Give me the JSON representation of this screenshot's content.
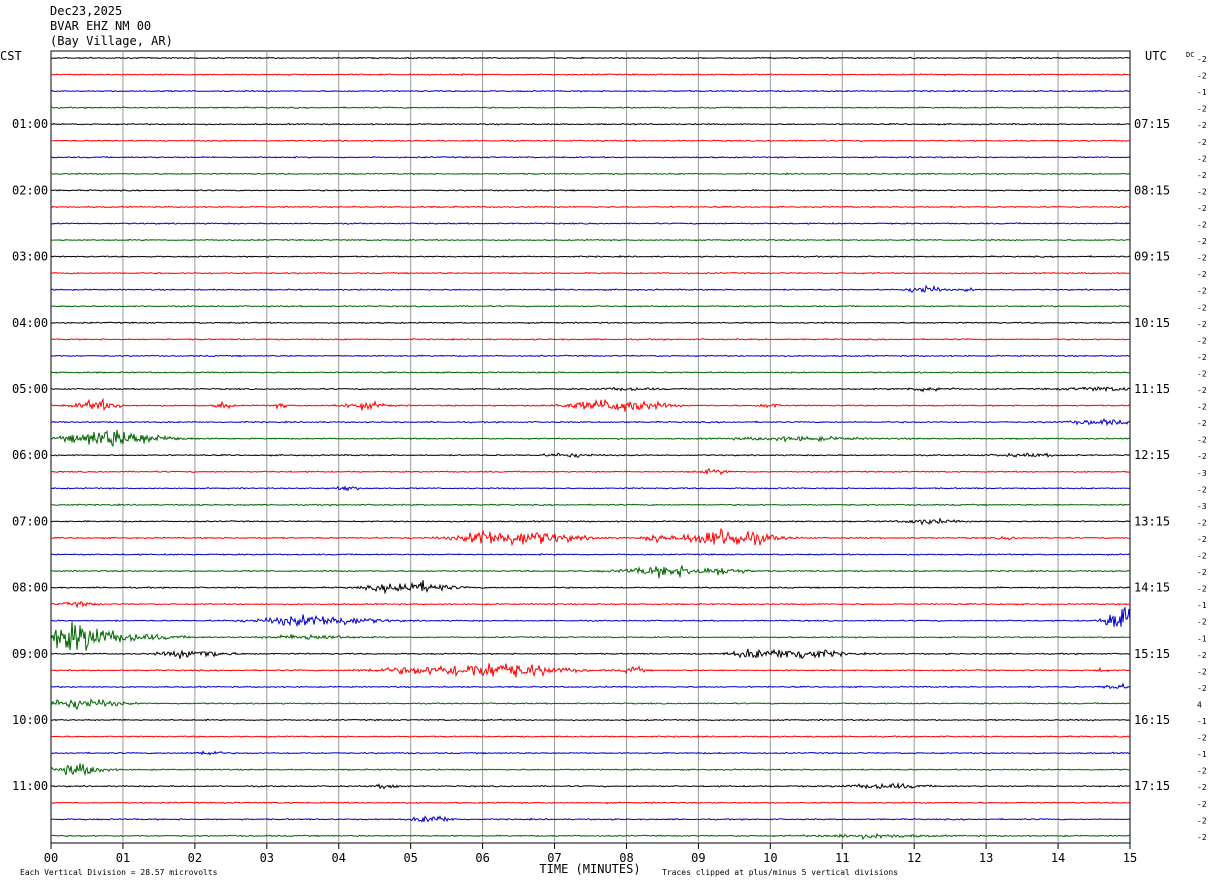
{
  "header": {
    "date": "Dec23,2025",
    "station": "BVAR EHZ NM 00",
    "location": "(Bay Village, AR)"
  },
  "labels": {
    "left_timezone": "CST",
    "right_timezone": "UTC",
    "dc_label": "DC",
    "xlabel": "TIME (MINUTES)",
    "footer_left": "Each Vertical Division =   28.57 microvolts",
    "footer_right": "Traces clipped at plus/minus 5 vertical divisions"
  },
  "chart_data": {
    "type": "line",
    "title": "BVAR EHZ NM 00",
    "xlabel": "TIME (MINUTES)",
    "xlim": [
      0,
      15
    ],
    "x_ticks": [
      "00",
      "01",
      "02",
      "03",
      "04",
      "05",
      "06",
      "07",
      "08",
      "09",
      "10",
      "11",
      "12",
      "13",
      "14",
      "15"
    ],
    "trace_count": 48,
    "trace_colors": [
      "#000000",
      "#ff0000",
      "#0000cc",
      "#006600"
    ],
    "hour_labels_left": [
      "01:00",
      "02:00",
      "03:00",
      "04:00",
      "05:00",
      "06:00",
      "07:00",
      "08:00",
      "09:00",
      "10:00",
      "11:00"
    ],
    "hour_labels_right": [
      "07:15",
      "08:15",
      "09:15",
      "10:15",
      "11:15",
      "12:15",
      "13:15",
      "14:15",
      "15:15",
      "16:15",
      "17:15"
    ],
    "dc_offsets": [
      "-2",
      "-2",
      "-1",
      "-2",
      "-2",
      "-2",
      "-2",
      "-2",
      "-2",
      "-2",
      "-2",
      "-2",
      "-2",
      "-2",
      "-2",
      "-2",
      "-2",
      "-2",
      "-2",
      "-2",
      "-2",
      "-2",
      "-2",
      "-2",
      "-2",
      "-3",
      "-2",
      "-3",
      "-2",
      "-2",
      "-2",
      "-2",
      "-2",
      "-1",
      "-2",
      "-1",
      "-2",
      "-2",
      "-2",
      "4",
      "-1",
      "-2",
      "-1",
      "-2",
      "-2",
      "-2",
      "-2",
      "-2"
    ],
    "events": [
      {
        "trace": 14,
        "center_min": 12.15,
        "width_min": 0.25,
        "amp": 7
      },
      {
        "trace": 14,
        "center_min": 12.75,
        "width_min": 0.1,
        "amp": 2
      },
      {
        "trace": 20,
        "center_min": 12.2,
        "width_min": 0.4,
        "amp": 3
      },
      {
        "trace": 20,
        "center_min": 14.6,
        "width_min": 0.6,
        "amp": 3
      },
      {
        "trace": 20,
        "center_min": 8.0,
        "width_min": 0.5,
        "amp": 2
      },
      {
        "trace": 21,
        "center_min": 0.65,
        "width_min": 0.35,
        "amp": 8
      },
      {
        "trace": 21,
        "center_min": 2.4,
        "width_min": 0.12,
        "amp": 6
      },
      {
        "trace": 21,
        "center_min": 3.2,
        "width_min": 0.15,
        "amp": 3
      },
      {
        "trace": 21,
        "center_min": 4.35,
        "width_min": 0.4,
        "amp": 5
      },
      {
        "trace": 21,
        "center_min": 8.0,
        "width_min": 0.6,
        "amp": 9
      },
      {
        "trace": 21,
        "center_min": 7.5,
        "width_min": 0.6,
        "amp": 4
      },
      {
        "trace": 21,
        "center_min": 10.0,
        "width_min": 0.2,
        "amp": 3
      },
      {
        "trace": 22,
        "center_min": 14.6,
        "width_min": 0.5,
        "amp": 4
      },
      {
        "trace": 23,
        "center_min": 0.75,
        "width_min": 0.6,
        "amp": 14
      },
      {
        "trace": 23,
        "center_min": 1.3,
        "width_min": 0.6,
        "amp": 5
      },
      {
        "trace": 23,
        "center_min": 10.4,
        "width_min": 1.0,
        "amp": 3
      },
      {
        "trace": 24,
        "center_min": 7.2,
        "width_min": 0.4,
        "amp": 3
      },
      {
        "trace": 24,
        "center_min": 13.6,
        "width_min": 0.6,
        "amp": 2
      },
      {
        "trace": 25,
        "center_min": 9.2,
        "width_min": 0.3,
        "amp": 3
      },
      {
        "trace": 26,
        "center_min": 4.1,
        "width_min": 0.2,
        "amp": 4
      },
      {
        "trace": 28,
        "center_min": 12.2,
        "width_min": 0.4,
        "amp": 4
      },
      {
        "trace": 29,
        "center_min": 6.5,
        "width_min": 0.9,
        "amp": 12
      },
      {
        "trace": 29,
        "center_min": 6.0,
        "width_min": 0.2,
        "amp": 7
      },
      {
        "trace": 29,
        "center_min": 8.4,
        "width_min": 0.15,
        "amp": 7
      },
      {
        "trace": 29,
        "center_min": 9.4,
        "width_min": 0.7,
        "amp": 16
      },
      {
        "trace": 29,
        "center_min": 13.3,
        "width_min": 0.15,
        "amp": 3
      },
      {
        "trace": 31,
        "center_min": 8.6,
        "width_min": 0.7,
        "amp": 9
      },
      {
        "trace": 31,
        "center_min": 9.4,
        "width_min": 0.3,
        "amp": 5
      },
      {
        "trace": 32,
        "center_min": 5.0,
        "width_min": 0.6,
        "amp": 10
      },
      {
        "trace": 33,
        "center_min": 0.4,
        "width_min": 0.3,
        "amp": 3
      },
      {
        "trace": 34,
        "center_min": 3.7,
        "width_min": 0.9,
        "amp": 9
      },
      {
        "trace": 34,
        "center_min": 14.9,
        "width_min": 0.25,
        "amp": 28
      },
      {
        "trace": 35,
        "center_min": 0.35,
        "width_min": 0.5,
        "amp": 22
      },
      {
        "trace": 35,
        "center_min": 1.0,
        "width_min": 0.8,
        "amp": 6
      },
      {
        "trace": 35,
        "center_min": 3.6,
        "width_min": 0.6,
        "amp": 4
      },
      {
        "trace": 36,
        "center_min": 2.0,
        "width_min": 0.5,
        "amp": 7
      },
      {
        "trace": 36,
        "center_min": 9.7,
        "width_min": 0.3,
        "amp": 6
      },
      {
        "trace": 36,
        "center_min": 10.4,
        "width_min": 0.6,
        "amp": 10
      },
      {
        "trace": 37,
        "center_min": 6.2,
        "width_min": 1.0,
        "amp": 13
      },
      {
        "trace": 37,
        "center_min": 5.0,
        "width_min": 0.8,
        "amp": 4
      },
      {
        "trace": 37,
        "center_min": 8.1,
        "width_min": 0.15,
        "amp": 6
      },
      {
        "trace": 37,
        "center_min": 14.6,
        "width_min": 0.1,
        "amp": 3
      },
      {
        "trace": 38,
        "center_min": 14.8,
        "width_min": 0.2,
        "amp": 5
      },
      {
        "trace": 39,
        "center_min": 0.4,
        "width_min": 0.6,
        "amp": 8
      },
      {
        "trace": 42,
        "center_min": 2.2,
        "width_min": 0.2,
        "amp": 4
      },
      {
        "trace": 43,
        "center_min": 0.4,
        "width_min": 0.4,
        "amp": 9
      },
      {
        "trace": 44,
        "center_min": 4.7,
        "width_min": 0.2,
        "amp": 4
      },
      {
        "trace": 44,
        "center_min": 11.6,
        "width_min": 0.6,
        "amp": 4
      },
      {
        "trace": 46,
        "center_min": 5.3,
        "width_min": 0.3,
        "amp": 6
      },
      {
        "trace": 47,
        "center_min": 11.4,
        "width_min": 0.8,
        "amp": 3
      }
    ]
  }
}
